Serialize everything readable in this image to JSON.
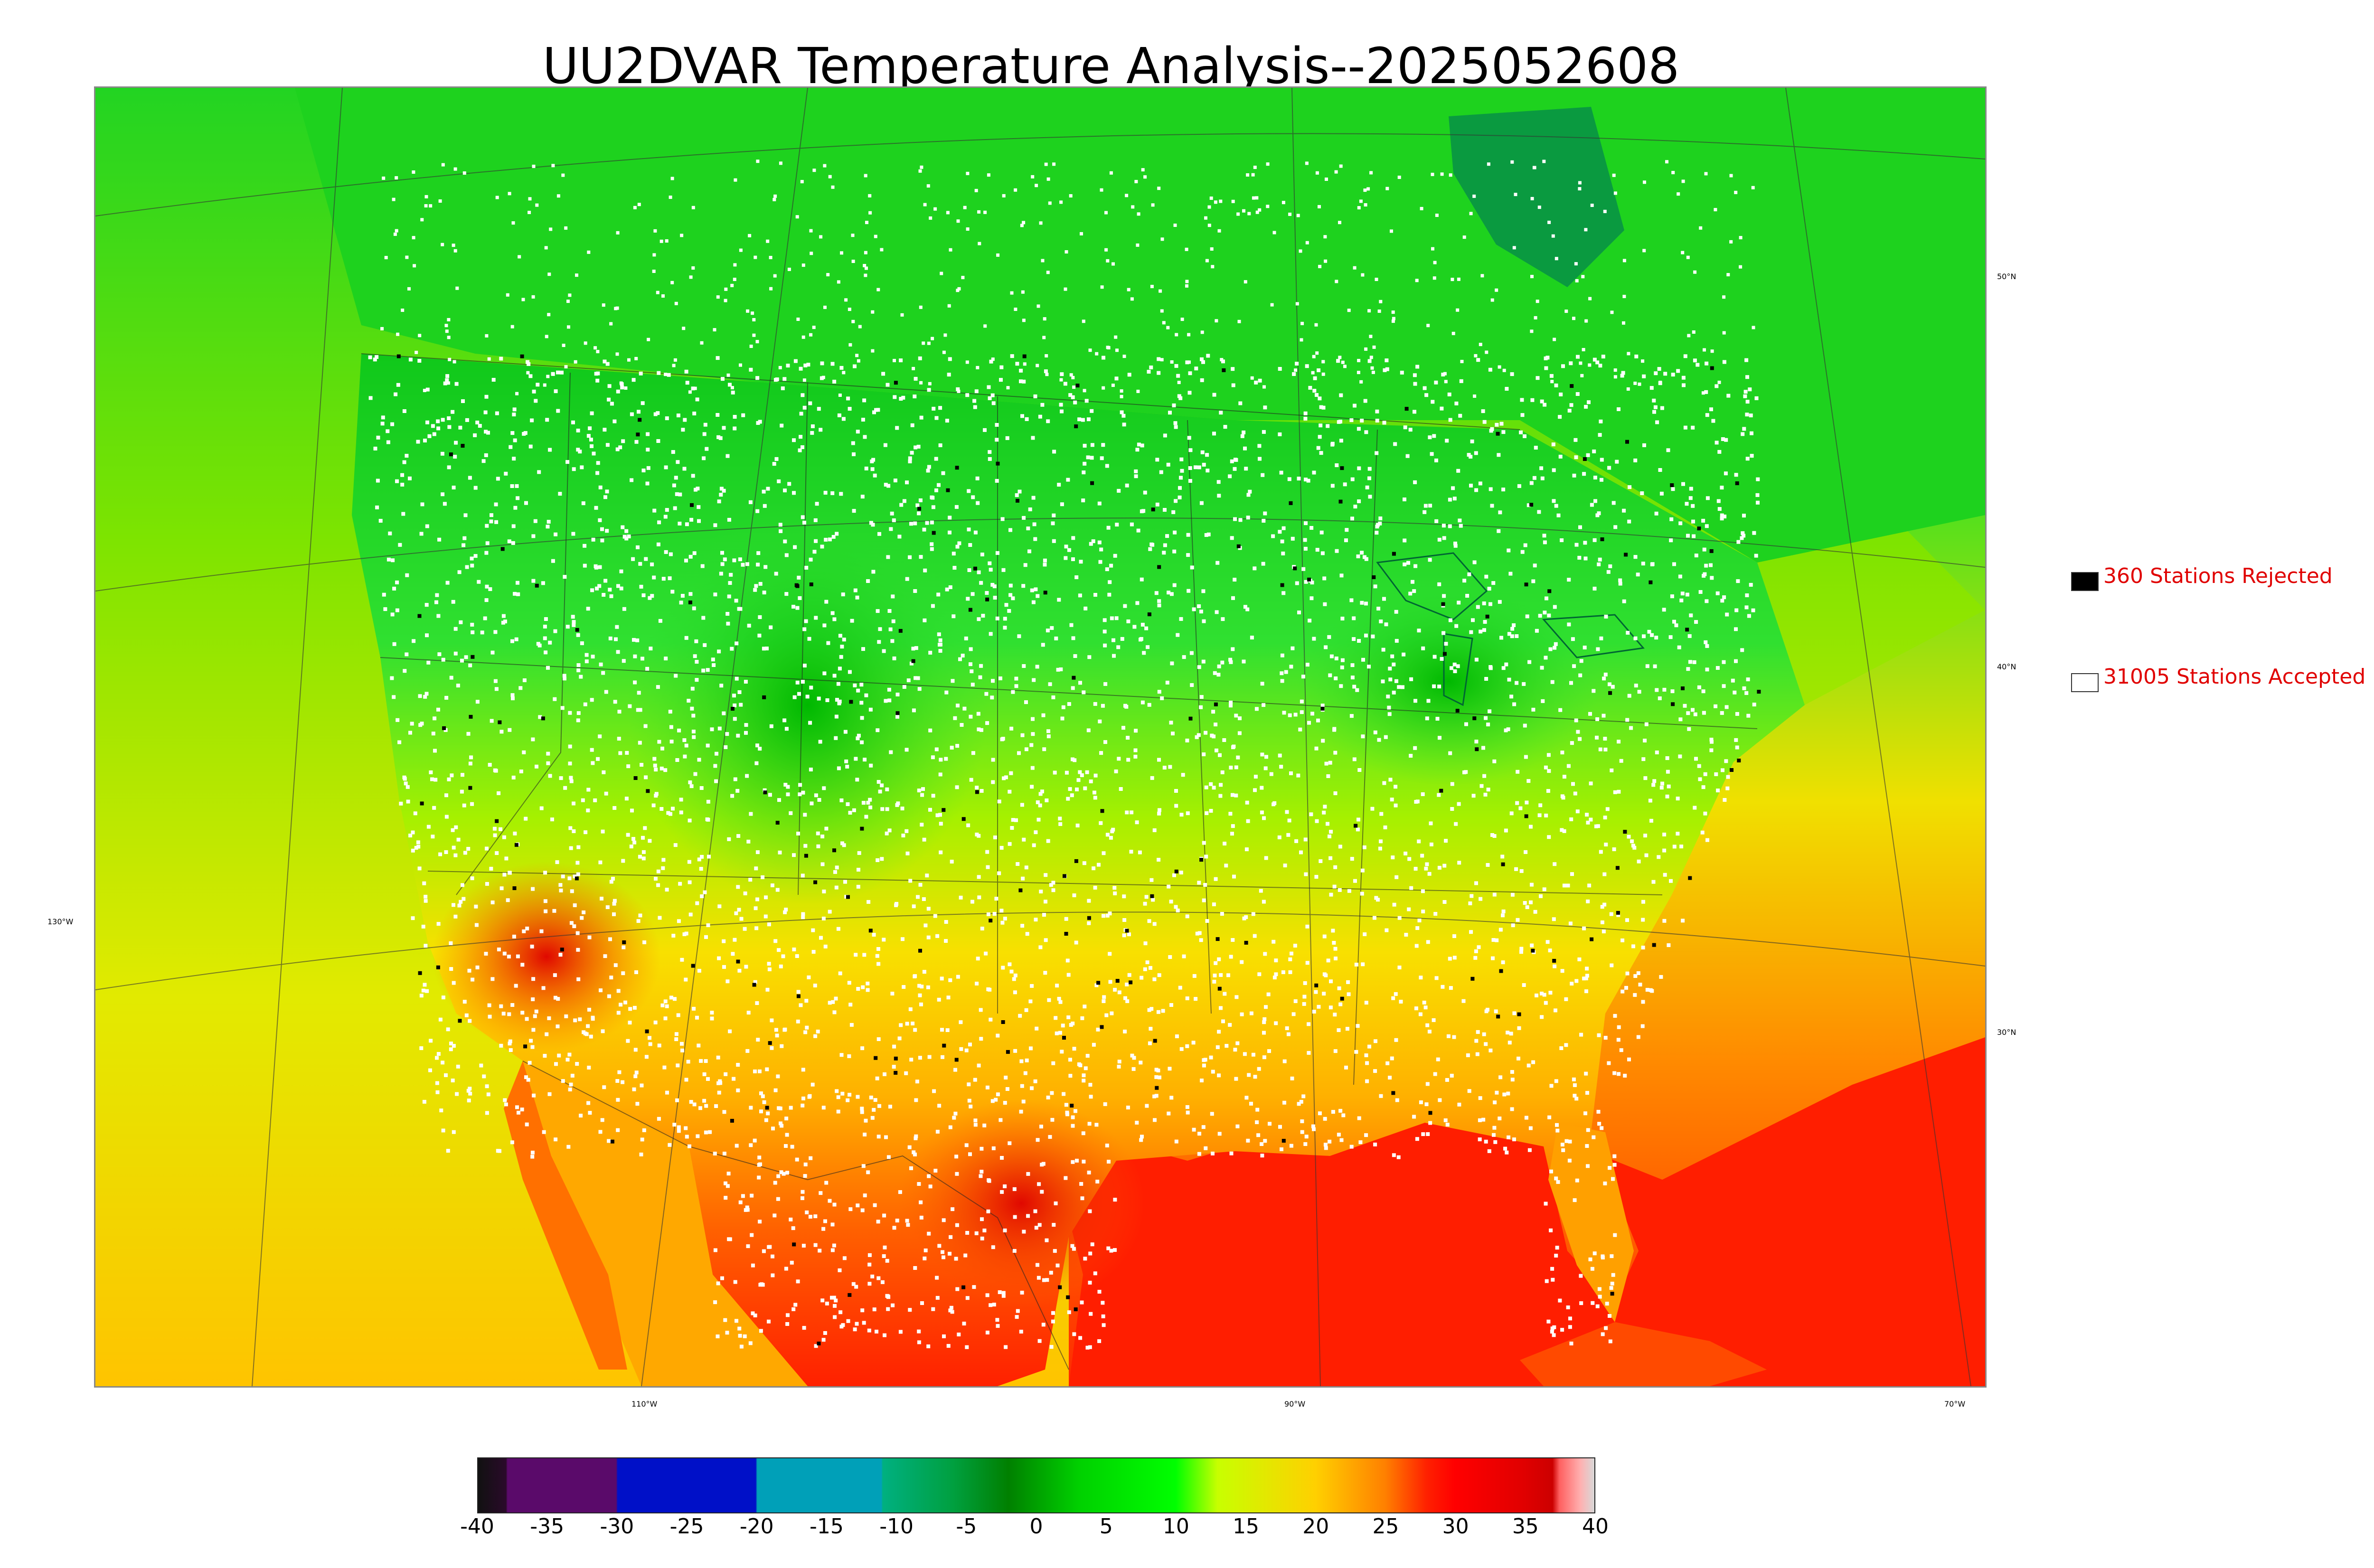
{
  "title": "UU2DVAR Temperature Analysis--2025052608",
  "legend": {
    "rejected": {
      "label": "360 Stations Rejected",
      "swatch_color": "#000000"
    },
    "accepted": {
      "label": "31005 Stations Accepted",
      "swatch_color": "#ffffff"
    }
  },
  "map": {
    "lat_labels": [
      "50°N",
      "40°N",
      "30°N"
    ],
    "lon_labels": [
      "130°W",
      "110°W",
      "90°W",
      "70°W"
    ],
    "colors": {
      "ocean_pacific": "#c9e600",
      "ocean_gulf": "#ff2a00",
      "canada": "#1ec81e",
      "land_north": "#22dd22",
      "land_mid": "#b9f000",
      "land_south": "#ffb000",
      "desert_hot": "#e01000",
      "station_accepted": "#ffffff",
      "station_rejected": "#000000"
    }
  },
  "colorbar": {
    "ticks": [
      "-40",
      "-35",
      "-30",
      "-25",
      "-20",
      "-15",
      "-10",
      "-5",
      "0",
      "5",
      "10",
      "15",
      "20",
      "25",
      "30",
      "35",
      "40"
    ],
    "range": [
      -40,
      40
    ],
    "stops": [
      {
        "v": -40,
        "c": "#111111"
      },
      {
        "v": -38,
        "c": "#2a0a2a"
      },
      {
        "v": -37.9,
        "c": "#5a0a6a"
      },
      {
        "v": -30.1,
        "c": "#5a0a6a"
      },
      {
        "v": -30,
        "c": "#0010c8"
      },
      {
        "v": -20.1,
        "c": "#0010c8"
      },
      {
        "v": -20,
        "c": "#00a0b8"
      },
      {
        "v": -11.1,
        "c": "#00a0b8"
      },
      {
        "v": -11,
        "c": "#00b080"
      },
      {
        "v": -6,
        "c": "#00a040"
      },
      {
        "v": -2,
        "c": "#008000"
      },
      {
        "v": 3,
        "c": "#00d000"
      },
      {
        "v": 10,
        "c": "#00ff00"
      },
      {
        "v": 13,
        "c": "#c8ff00"
      },
      {
        "v": 20,
        "c": "#ffd000"
      },
      {
        "v": 25,
        "c": "#ff8000"
      },
      {
        "v": 28,
        "c": "#ff2000"
      },
      {
        "v": 30,
        "c": "#ff0000"
      },
      {
        "v": 35,
        "c": "#e00000"
      },
      {
        "v": 37,
        "c": "#cc0000"
      },
      {
        "v": 37.5,
        "c": "#ff6060"
      },
      {
        "v": 39,
        "c": "#ffb0b0"
      },
      {
        "v": 40,
        "c": "#d8d8d8"
      }
    ]
  }
}
